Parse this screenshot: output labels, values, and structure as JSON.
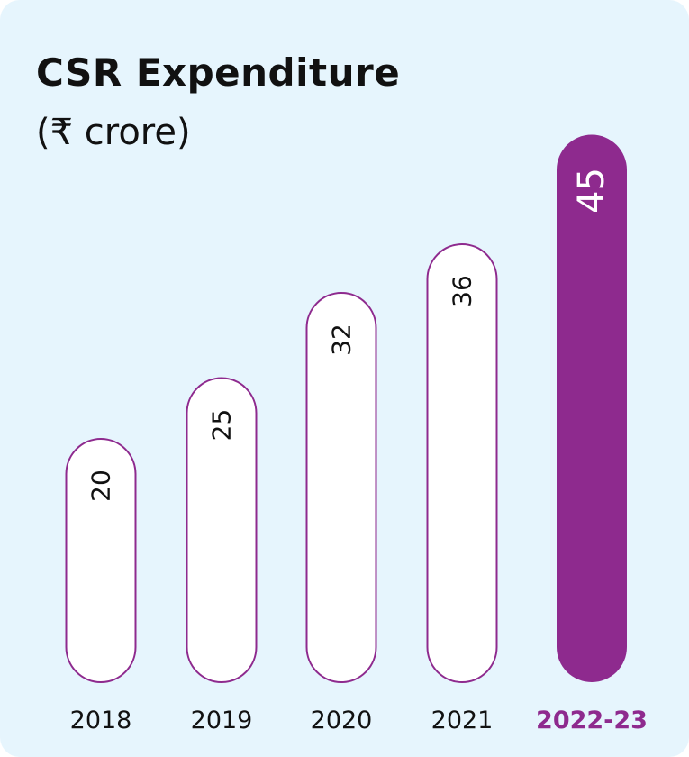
{
  "title": "CSR Expenditure",
  "subtitle": "(₹ crore)",
  "colors": {
    "background": "#e6f5fd",
    "accent": "#8e2a8e",
    "bar_fill": "#ffffff",
    "text": "#111111"
  },
  "chart_data": {
    "type": "bar",
    "orientation": "vertical",
    "title": "CSR Expenditure",
    "ylabel": "(₹ crore)",
    "categories": [
      "2018",
      "2019",
      "2020",
      "2021",
      "2022-23"
    ],
    "values": [
      20,
      25,
      32,
      36,
      45
    ],
    "highlight_index": 4,
    "data_labels": [
      "20",
      "25",
      "32",
      "36",
      "45"
    ],
    "grid": false,
    "legend": "none"
  }
}
